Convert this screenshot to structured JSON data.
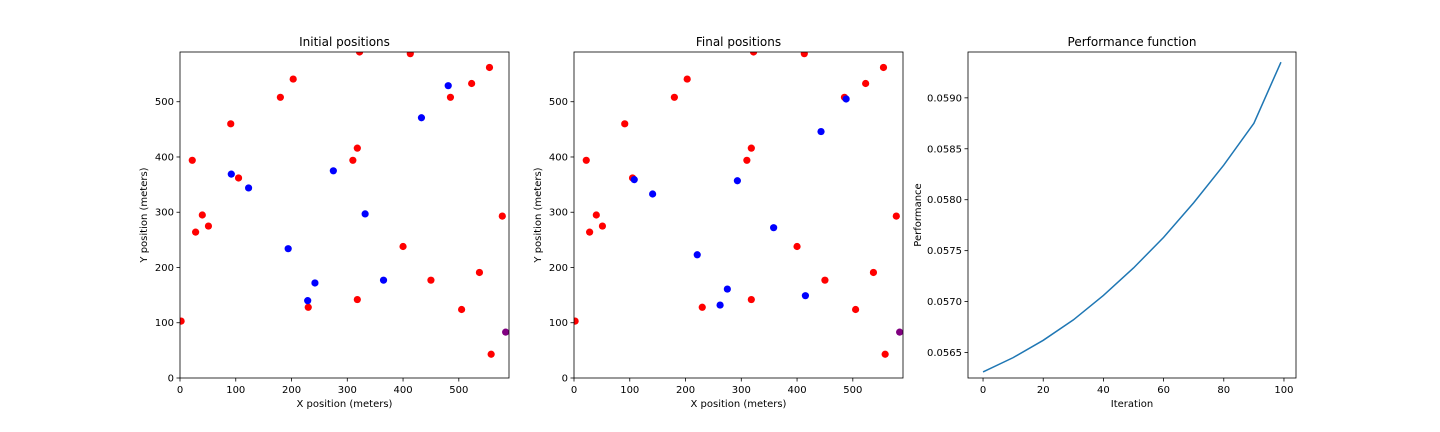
{
  "colors": {
    "red_points": "#ff0000",
    "blue_points": "#0000ff",
    "overlap_point": "#800080",
    "line": "#1f77b4",
    "axes": "#000000"
  },
  "chart_data": [
    {
      "type": "scatter",
      "title": "Initial positions",
      "xlabel": "X position (meters)",
      "ylabel": "Y position (meters)",
      "xlim": [
        0,
        590
      ],
      "ylim": [
        0,
        590
      ],
      "xticks": [
        0,
        100,
        200,
        300,
        400,
        500
      ],
      "yticks": [
        0,
        100,
        200,
        300,
        400,
        500
      ],
      "grid": false,
      "series": [
        {
          "color": "#ff0000",
          "points": [
            [
              2,
              103
            ],
            [
              22,
              394
            ],
            [
              28,
              264
            ],
            [
              40,
              295
            ],
            [
              51,
              275
            ],
            [
              91,
              460
            ],
            [
              105,
              362
            ],
            [
              180,
              508
            ],
            [
              203,
              541
            ],
            [
              230,
              128
            ],
            [
              310,
              394
            ],
            [
              318,
              142
            ],
            [
              318,
              416
            ],
            [
              322,
              590
            ],
            [
              400,
              238
            ],
            [
              413,
              587
            ],
            [
              450,
              177
            ],
            [
              485,
              508
            ],
            [
              505,
              124
            ],
            [
              523,
              533
            ],
            [
              537,
              191
            ],
            [
              555,
              562
            ],
            [
              558,
              43
            ],
            [
              578,
              293
            ]
          ]
        },
        {
          "color": "#0000ff",
          "points": [
            [
              92,
              369
            ],
            [
              123,
              344
            ],
            [
              194,
              234
            ],
            [
              229,
              140
            ],
            [
              242,
              172
            ],
            [
              275,
              375
            ],
            [
              332,
              297
            ],
            [
              365,
              177
            ],
            [
              433,
              471
            ],
            [
              481,
              529
            ]
          ]
        },
        {
          "color": "#800080",
          "points": [
            [
              584,
              83
            ]
          ]
        }
      ]
    },
    {
      "type": "scatter",
      "title": "Final positions",
      "xlabel": "X position (meters)",
      "ylabel": "Y position (meters)",
      "xlim": [
        0,
        590
      ],
      "ylim": [
        0,
        590
      ],
      "xticks": [
        0,
        100,
        200,
        300,
        400,
        500
      ],
      "yticks": [
        0,
        100,
        200,
        300,
        400,
        500
      ],
      "grid": false,
      "series": [
        {
          "color": "#ff0000",
          "points": [
            [
              2,
              103
            ],
            [
              22,
              394
            ],
            [
              28,
              264
            ],
            [
              40,
              295
            ],
            [
              51,
              275
            ],
            [
              91,
              460
            ],
            [
              105,
              362
            ],
            [
              180,
              508
            ],
            [
              203,
              541
            ],
            [
              230,
              128
            ],
            [
              310,
              394
            ],
            [
              318,
              142
            ],
            [
              318,
              416
            ],
            [
              322,
              590
            ],
            [
              400,
              238
            ],
            [
              413,
              587
            ],
            [
              450,
              177
            ],
            [
              485,
              508
            ],
            [
              505,
              124
            ],
            [
              523,
              533
            ],
            [
              537,
              191
            ],
            [
              555,
              562
            ],
            [
              558,
              43
            ],
            [
              578,
              293
            ]
          ]
        },
        {
          "color": "#0000ff",
          "points": [
            [
              108,
              359
            ],
            [
              141,
              333
            ],
            [
              221,
              223
            ],
            [
              275,
              161
            ],
            [
              262,
              132
            ],
            [
              293,
              357
            ],
            [
              358,
              272
            ],
            [
              415,
              149
            ],
            [
              443,
              446
            ],
            [
              488,
              505
            ]
          ]
        },
        {
          "color": "#800080",
          "points": [
            [
              584,
              83
            ]
          ]
        }
      ]
    },
    {
      "type": "line",
      "title": "Performance function",
      "xlabel": "Iteration",
      "ylabel": "Performance",
      "xlim": [
        -5,
        104
      ],
      "ylim": [
        0.05625,
        0.05945
      ],
      "xticks": [
        0,
        20,
        40,
        60,
        80,
        100
      ],
      "yticks": [
        0.0565,
        0.057,
        0.0575,
        0.058,
        0.0585,
        0.059
      ],
      "yticklabels": [
        "0.0565",
        "0.0570",
        "0.0575",
        "0.0580",
        "0.0585",
        "0.0590"
      ],
      "grid": false,
      "series": [
        {
          "color": "#1f77b4",
          "x": [
            0,
            10,
            20,
            30,
            40,
            50,
            60,
            70,
            80,
            90,
            99
          ],
          "values": [
            0.05631,
            0.05645,
            0.05662,
            0.05682,
            0.05706,
            0.05733,
            0.05763,
            0.05797,
            0.05834,
            0.05875,
            0.05935
          ]
        }
      ]
    }
  ]
}
